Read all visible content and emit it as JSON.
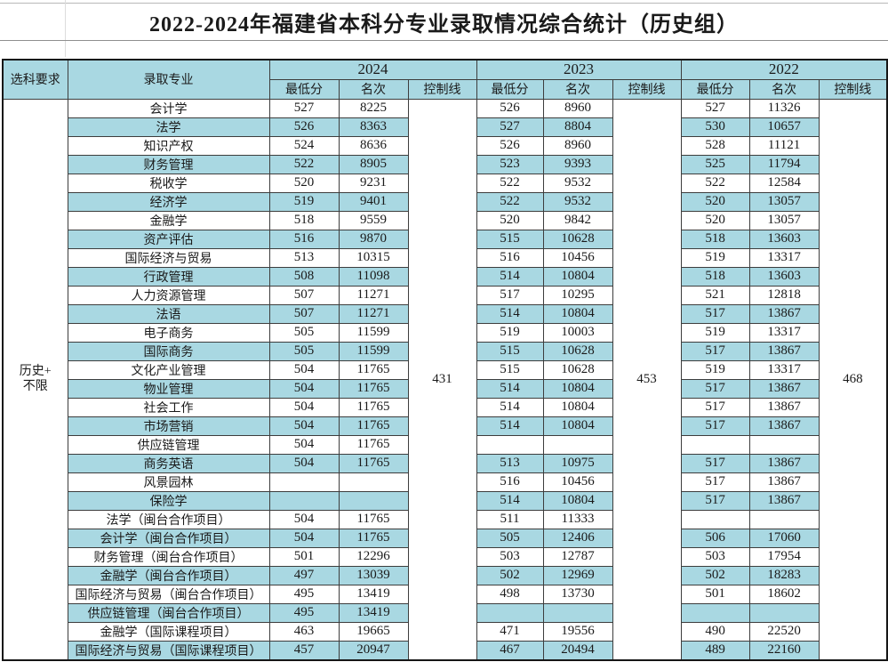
{
  "title": "2022-2024年福建省本科分专业录取情况综合统计（历史组）",
  "colors": {
    "header_fill": "#a9d8e2",
    "alt_row_fill": "#a9d8e2",
    "grid_border": "#3d3d3d",
    "outer_border": "#161616",
    "text": "#1a1a1a"
  },
  "table": {
    "headers": {
      "subject_req": "选科要求",
      "major": "录取专业"
    },
    "sub_headers": [
      "最低分",
      "名次",
      "控制线"
    ],
    "year_groups": [
      {
        "year": "2024",
        "control_line": "431"
      },
      {
        "year": "2023",
        "control_line": "453"
      },
      {
        "year": "2022",
        "control_line": "468"
      }
    ],
    "subject_requirement": [
      "历史+",
      "不限"
    ],
    "rows": [
      {
        "major": "会计学",
        "v": [
          "527",
          "8225",
          "526",
          "8960",
          "527",
          "11326"
        ]
      },
      {
        "major": "法学",
        "v": [
          "526",
          "8363",
          "527",
          "8804",
          "530",
          "10657"
        ]
      },
      {
        "major": "知识产权",
        "v": [
          "524",
          "8636",
          "526",
          "8960",
          "528",
          "11121"
        ]
      },
      {
        "major": "财务管理",
        "v": [
          "522",
          "8905",
          "523",
          "9393",
          "525",
          "11794"
        ]
      },
      {
        "major": "税收学",
        "v": [
          "520",
          "9231",
          "522",
          "9532",
          "522",
          "12584"
        ]
      },
      {
        "major": "经济学",
        "v": [
          "519",
          "9401",
          "522",
          "9532",
          "520",
          "13057"
        ]
      },
      {
        "major": "金融学",
        "v": [
          "518",
          "9559",
          "520",
          "9842",
          "520",
          "13057"
        ]
      },
      {
        "major": "资产评估",
        "v": [
          "516",
          "9870",
          "515",
          "10628",
          "518",
          "13603"
        ]
      },
      {
        "major": "国际经济与贸易",
        "v": [
          "513",
          "10315",
          "516",
          "10456",
          "519",
          "13317"
        ]
      },
      {
        "major": "行政管理",
        "v": [
          "508",
          "11098",
          "514",
          "10804",
          "518",
          "13603"
        ]
      },
      {
        "major": "人力资源管理",
        "v": [
          "507",
          "11271",
          "517",
          "10295",
          "521",
          "12818"
        ]
      },
      {
        "major": "法语",
        "v": [
          "507",
          "11271",
          "514",
          "10804",
          "517",
          "13867"
        ]
      },
      {
        "major": "电子商务",
        "v": [
          "505",
          "11599",
          "519",
          "10003",
          "519",
          "13317"
        ]
      },
      {
        "major": "国际商务",
        "v": [
          "505",
          "11599",
          "515",
          "10628",
          "517",
          "13867"
        ]
      },
      {
        "major": "文化产业管理",
        "v": [
          "504",
          "11765",
          "515",
          "10628",
          "519",
          "13317"
        ]
      },
      {
        "major": "物业管理",
        "v": [
          "504",
          "11765",
          "514",
          "10804",
          "517",
          "13867"
        ]
      },
      {
        "major": "社会工作",
        "v": [
          "504",
          "11765",
          "514",
          "10804",
          "517",
          "13867"
        ]
      },
      {
        "major": "市场营销",
        "v": [
          "504",
          "11765",
          "514",
          "10804",
          "517",
          "13867"
        ]
      },
      {
        "major": "供应链管理",
        "v": [
          "504",
          "11765",
          "",
          "",
          "",
          ""
        ]
      },
      {
        "major": "商务英语",
        "v": [
          "504",
          "11765",
          "513",
          "10975",
          "517",
          "13867"
        ]
      },
      {
        "major": "风景园林",
        "v": [
          "",
          "",
          "516",
          "10456",
          "517",
          "13867"
        ]
      },
      {
        "major": "保险学",
        "v": [
          "",
          "",
          "514",
          "10804",
          "517",
          "13867"
        ]
      },
      {
        "major": "法学（闽台合作项目）",
        "v": [
          "504",
          "11765",
          "511",
          "11333",
          "",
          ""
        ]
      },
      {
        "major": "会计学（闽台合作项目）",
        "v": [
          "504",
          "11765",
          "505",
          "12406",
          "506",
          "17060"
        ]
      },
      {
        "major": "财务管理（闽台合作项目）",
        "v": [
          "501",
          "12296",
          "503",
          "12787",
          "503",
          "17954"
        ]
      },
      {
        "major": "金融学（闽台合作项目）",
        "v": [
          "497",
          "13039",
          "502",
          "12969",
          "502",
          "18283"
        ]
      },
      {
        "major": "国际经济与贸易（闽台合作项目）",
        "v": [
          "495",
          "13419",
          "498",
          "13730",
          "501",
          "18602"
        ]
      },
      {
        "major": "供应链管理（闽台合作项目）",
        "v": [
          "495",
          "13419",
          "",
          "",
          "",
          ""
        ]
      },
      {
        "major": "金融学（国际课程项目）",
        "v": [
          "463",
          "19665",
          "471",
          "19556",
          "490",
          "22520"
        ]
      },
      {
        "major": "国际经济与贸易（国际课程项目）",
        "v": [
          "457",
          "20947",
          "467",
          "20494",
          "489",
          "22160"
        ]
      }
    ]
  }
}
